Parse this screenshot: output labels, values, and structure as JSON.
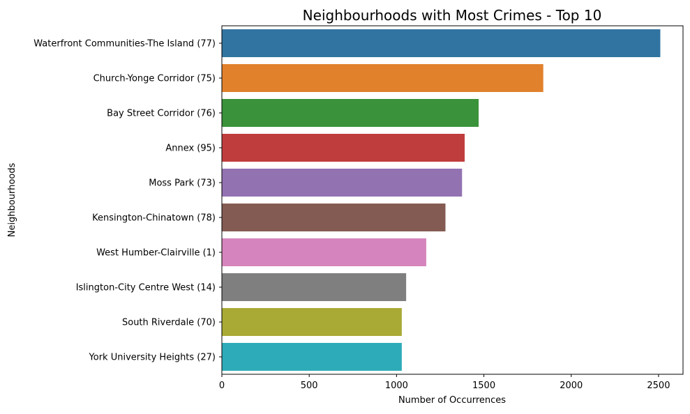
{
  "chart_data": {
    "type": "bar",
    "orientation": "horizontal",
    "title": "Neighbourhoods with Most Crimes - Top 10",
    "xlabel": "Number of Occurrences",
    "ylabel": "Neighbourhoods",
    "xlim": [
      0,
      2640
    ],
    "xticks": [
      0,
      500,
      1000,
      1500,
      2000,
      2500
    ],
    "grid": false,
    "legend": "none",
    "categories": [
      "Waterfront Communities-The Island (77)",
      "Church-Yonge Corridor (75)",
      "Bay Street Corridor (76)",
      "Annex (95)",
      "Moss Park (73)",
      "Kensington-Chinatown (78)",
      "West Humber-Clairville (1)",
      "Islington-City Centre West (14)",
      "South Riverdale (70)",
      "York University Heights (27)"
    ],
    "values": [
      2510,
      1840,
      1470,
      1390,
      1375,
      1280,
      1170,
      1055,
      1030,
      1030
    ],
    "colors": [
      "#3274a1",
      "#e1812c",
      "#3a923a",
      "#c03d3e",
      "#9372b2",
      "#845b53",
      "#d684bd",
      "#7f7f7f",
      "#a9aa35",
      "#2eabb8"
    ]
  }
}
